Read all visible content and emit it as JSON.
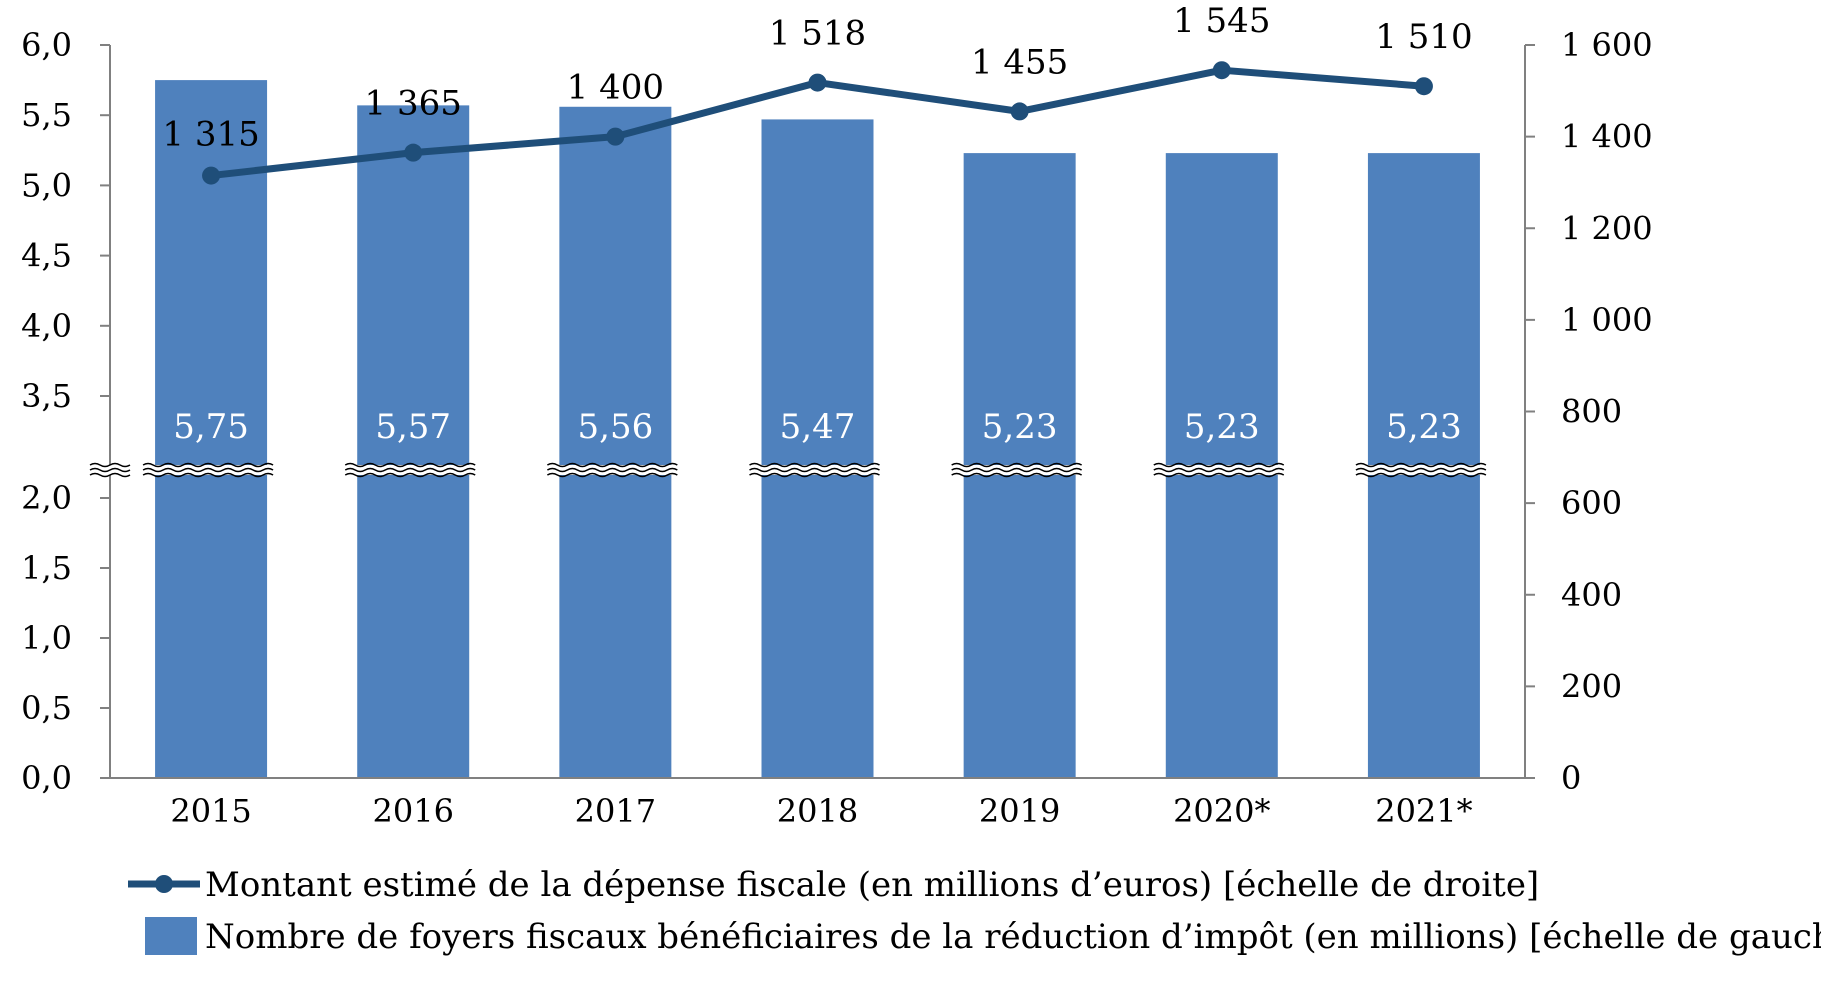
{
  "chart_data": {
    "type": "bar",
    "categories": [
      "2015",
      "2016",
      "2017",
      "2018",
      "2019",
      "2020*",
      "2021*"
    ],
    "series": [
      {
        "name": "Nombre de foyers fiscaux bénéficiaires de la réduction d’impôt (en millions) [échelle de gauche]",
        "kind": "bar",
        "axis": "left",
        "values": [
          5.75,
          5.57,
          5.56,
          5.47,
          5.23,
          5.23,
          5.23
        ],
        "labels": [
          "5,75",
          "5,57",
          "5,56",
          "5,47",
          "5,23",
          "5,23",
          "5,23"
        ]
      },
      {
        "name": "Montant estimé de la dépense fiscale (en millions d’euros) [échelle de droite]",
        "kind": "line",
        "axis": "right",
        "values": [
          1315,
          1365,
          1400,
          1518,
          1455,
          1545,
          1510
        ],
        "labels": [
          "1 315",
          "1 365",
          "1 400",
          "1 518",
          "1 455",
          "1 545",
          "1 510"
        ]
      }
    ],
    "left_axis": {
      "broken": true,
      "lower_ticks": [
        "0,0",
        "0,5",
        "1,0",
        "1,5",
        "2,0"
      ],
      "upper_ticks": [
        "3,5",
        "4,0",
        "4,5",
        "5,0",
        "5,5",
        "6,0"
      ],
      "lower_range": [
        0,
        2
      ],
      "upper_range": [
        3.5,
        6
      ]
    },
    "right_axis": {
      "ticks": [
        "0",
        "200",
        "400",
        "600",
        "800",
        "1 000",
        "1 200",
        "1 400",
        "1 600"
      ],
      "range": [
        0,
        1600
      ]
    },
    "grid": false,
    "legend_position": "bottom",
    "colors": {
      "bar": "#4f81bd",
      "line": "#1f4e79"
    }
  }
}
